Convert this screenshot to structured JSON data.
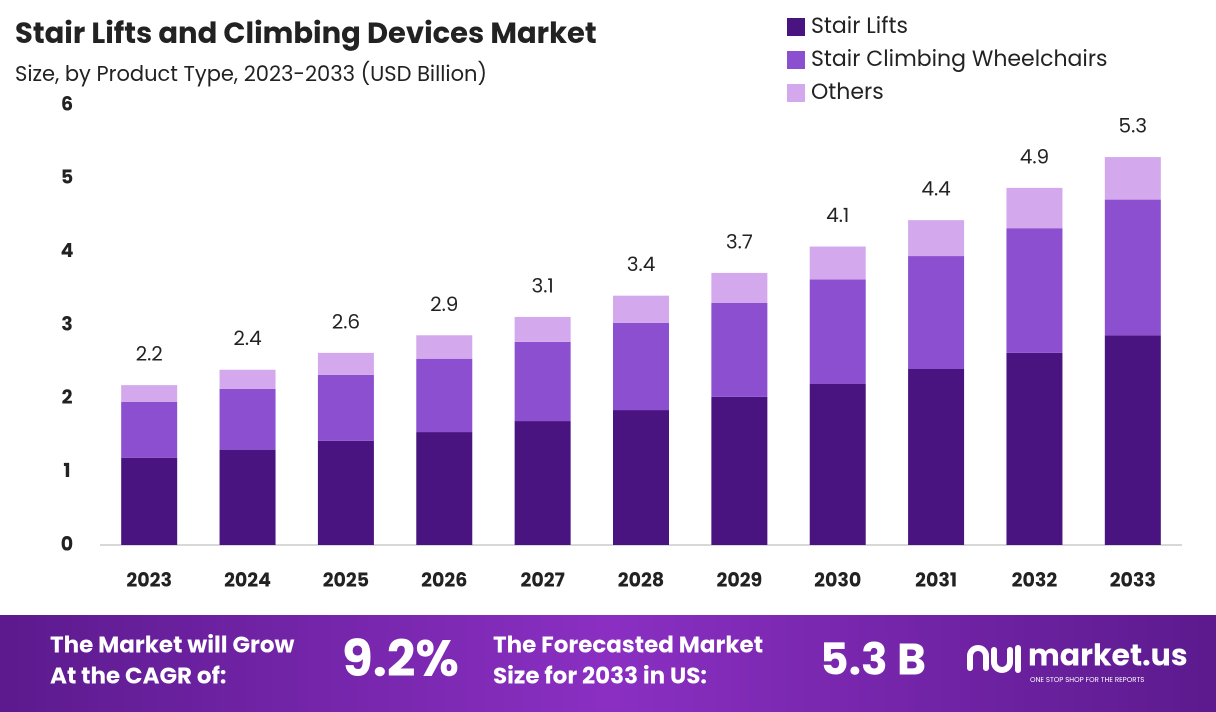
{
  "chart_data": {
    "type": "stacked-bar",
    "title": "Stair Lifts and Climbing Devices Market",
    "subtitle": "Size, by Product Type, 2023-2033 (USD Billion)",
    "categories": [
      "2023",
      "2024",
      "2025",
      "2026",
      "2027",
      "2028",
      "2029",
      "2030",
      "2031",
      "2032",
      "2033"
    ],
    "series": [
      {
        "name": "Stair Lifts",
        "color": "#4a1480",
        "values": [
          1.19,
          1.3,
          1.42,
          1.54,
          1.69,
          1.84,
          2.02,
          2.2,
          2.4,
          2.62,
          2.86
        ]
      },
      {
        "name": "Stair Climbing Wheelchairs",
        "color": "#8b4fd0",
        "values": [
          0.76,
          0.83,
          0.9,
          1.0,
          1.08,
          1.19,
          1.28,
          1.42,
          1.54,
          1.7,
          1.85
        ]
      },
      {
        "name": "Others",
        "color": "#d4a8ec",
        "values": [
          0.23,
          0.26,
          0.3,
          0.32,
          0.34,
          0.37,
          0.41,
          0.45,
          0.49,
          0.55,
          0.58
        ]
      }
    ],
    "totals": [
      2.2,
      2.4,
      2.6,
      2.9,
      3.1,
      3.4,
      3.7,
      4.1,
      4.4,
      4.9,
      5.3
    ],
    "ylim": [
      0,
      6
    ],
    "yticks": [
      0,
      1,
      2,
      3,
      4,
      5,
      6
    ],
    "grid": false
  },
  "footer": {
    "cagr_text": [
      "The Market will Grow",
      "At the CAGR of:"
    ],
    "cagr": "9.2%",
    "forecast_text": [
      "The Forecasted Market",
      "Size for 2033 in US:"
    ],
    "forecast": "5.3 B",
    "brand": "market.us",
    "tagline": "ONE STOP SHOP FOR THE REPORTS"
  }
}
